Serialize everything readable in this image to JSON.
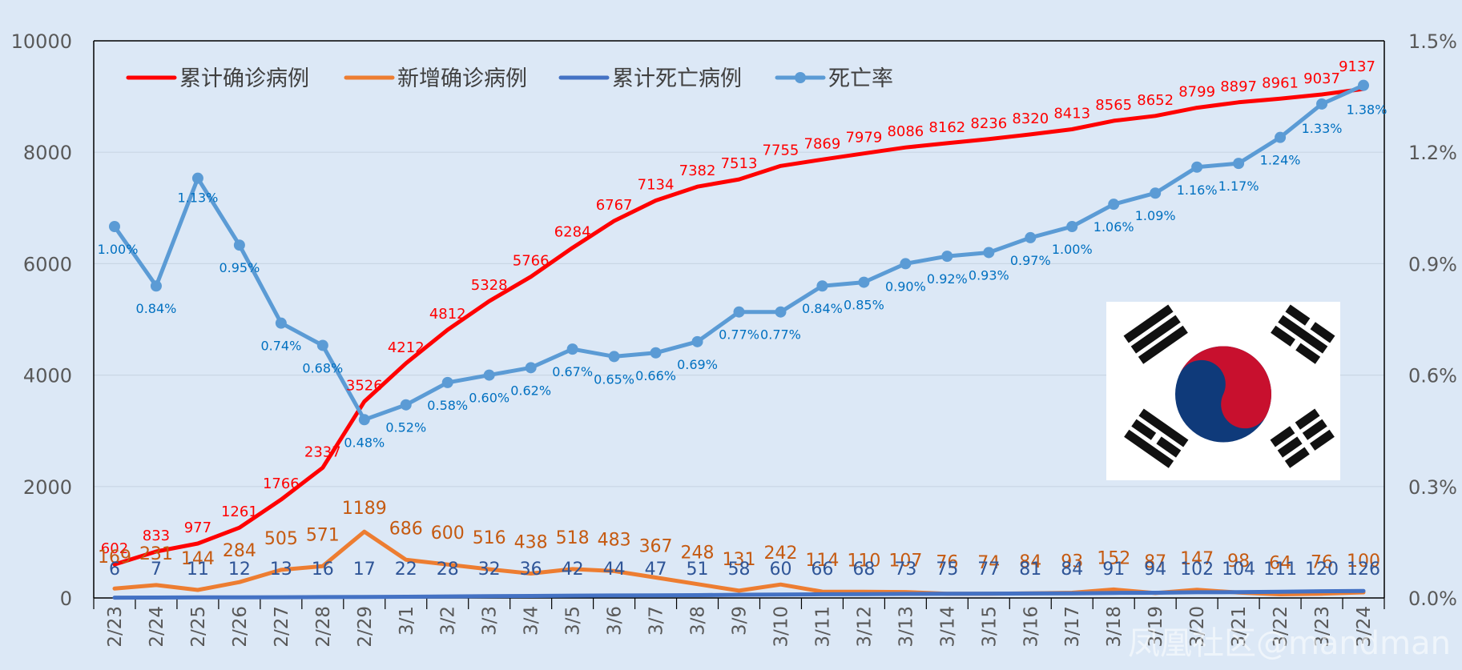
{
  "chart_data": {
    "type": "line",
    "categories": [
      "2/23",
      "2/24",
      "2/25",
      "2/26",
      "2/27",
      "2/28",
      "2/29",
      "3/1",
      "3/2",
      "3/3",
      "3/4",
      "3/5",
      "3/6",
      "3/7",
      "3/8",
      "3/9",
      "3/10",
      "3/11",
      "3/12",
      "3/13",
      "3/14",
      "3/15",
      "3/16",
      "3/17",
      "3/18",
      "3/19",
      "3/20",
      "3/21",
      "3/22",
      "3/23",
      "3/24"
    ],
    "y_left": {
      "min": 0,
      "max": 10000,
      "ticks": [
        0,
        2000,
        4000,
        6000,
        8000,
        10000
      ]
    },
    "y_right": {
      "min": 0,
      "max": 0.015,
      "ticks": [
        "0.0%",
        "0.3%",
        "0.6%",
        "0.9%",
        "1.2%",
        "1.5%"
      ]
    },
    "grid": true,
    "legend_position": "top-left",
    "series": [
      {
        "name": "累计确诊病例",
        "axis": "left",
        "color": "#ff0000",
        "values": [
          602,
          833,
          977,
          1261,
          1766,
          2337,
          3526,
          4212,
          4812,
          5328,
          5766,
          6284,
          6767,
          7134,
          7382,
          7513,
          7755,
          7869,
          7979,
          8086,
          8162,
          8236,
          8320,
          8413,
          8565,
          8652,
          8799,
          8897,
          8961,
          9037,
          9137
        ]
      },
      {
        "name": "新增确诊病例",
        "axis": "left",
        "color": "#ed7d31",
        "values": [
          169,
          231,
          144,
          284,
          505,
          571,
          1189,
          686,
          600,
          516,
          438,
          518,
          483,
          367,
          248,
          131,
          242,
          114,
          110,
          107,
          76,
          74,
          84,
          93,
          152,
          87,
          147,
          98,
          64,
          76,
          100
        ]
      },
      {
        "name": "累计死亡病例",
        "axis": "left",
        "color": "#4472c4",
        "values": [
          6,
          7,
          11,
          12,
          13,
          16,
          17,
          22,
          28,
          32,
          36,
          42,
          44,
          47,
          51,
          58,
          60,
          66,
          68,
          73,
          75,
          77,
          81,
          84,
          91,
          94,
          102,
          104,
          111,
          120,
          126
        ]
      },
      {
        "name": "死亡率",
        "axis": "right",
        "color": "#5b9bd5",
        "values": [
          0.01,
          0.0084,
          0.0113,
          0.0095,
          0.0074,
          0.0068,
          0.0048,
          0.0052,
          0.0058,
          0.006,
          0.0062,
          0.0067,
          0.0065,
          0.0066,
          0.0069,
          0.0077,
          0.0077,
          0.0084,
          0.0085,
          0.009,
          0.0092,
          0.0093,
          0.0097,
          0.01,
          0.0106,
          0.0109,
          0.0116,
          0.0117,
          0.0124,
          0.0133,
          0.0138
        ],
        "labels": [
          "1.00%",
          "0.84%",
          "1.13%",
          "0.95%",
          "0.74%",
          "0.68%",
          "0.48%",
          "0.52%",
          "0.58%",
          "0.60%",
          "0.62%",
          "0.67%",
          "0.65%",
          "0.66%",
          "0.69%",
          "0.77%",
          "0.77%",
          "0.84%",
          "0.85%",
          "0.90%",
          "0.92%",
          "0.93%",
          "0.97%",
          "1.00%",
          "1.06%",
          "1.09%",
          "1.16%",
          "1.17%",
          "1.24%",
          "1.33%",
          "1.38%"
        ]
      }
    ]
  },
  "watermark": "凤凰社区@mandman",
  "flag_icon": "south-korea-flag-icon",
  "colors": {
    "background": "#dce8f6",
    "axis": "#000000",
    "grid": "#c9d6e4",
    "tick_text": "#595959"
  }
}
